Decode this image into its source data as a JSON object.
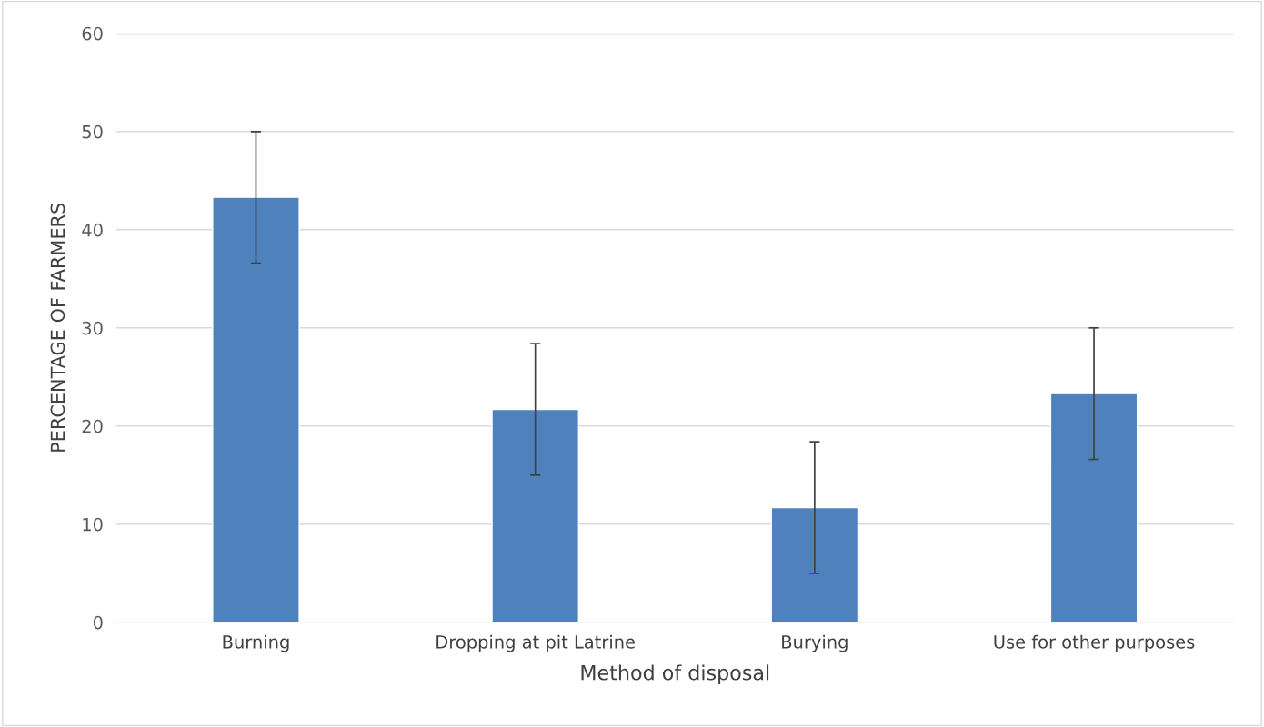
{
  "chart_data": {
    "type": "bar",
    "categories": [
      "Burning",
      "Dropping at pit Latrine",
      "Burying",
      "Use for other purposes"
    ],
    "values": [
      43.3,
      21.7,
      11.7,
      23.3
    ],
    "errors": [
      6.7,
      6.7,
      6.7,
      6.7
    ],
    "color": "#4f81bd",
    "xlabel": "Method of disposal",
    "ylabel": "PERCENTAGE OF FARMERS",
    "ylim": [
      0,
      60
    ],
    "yticks": [
      0,
      10,
      20,
      30,
      40,
      50,
      60
    ],
    "grid": "y",
    "legend": false
  }
}
